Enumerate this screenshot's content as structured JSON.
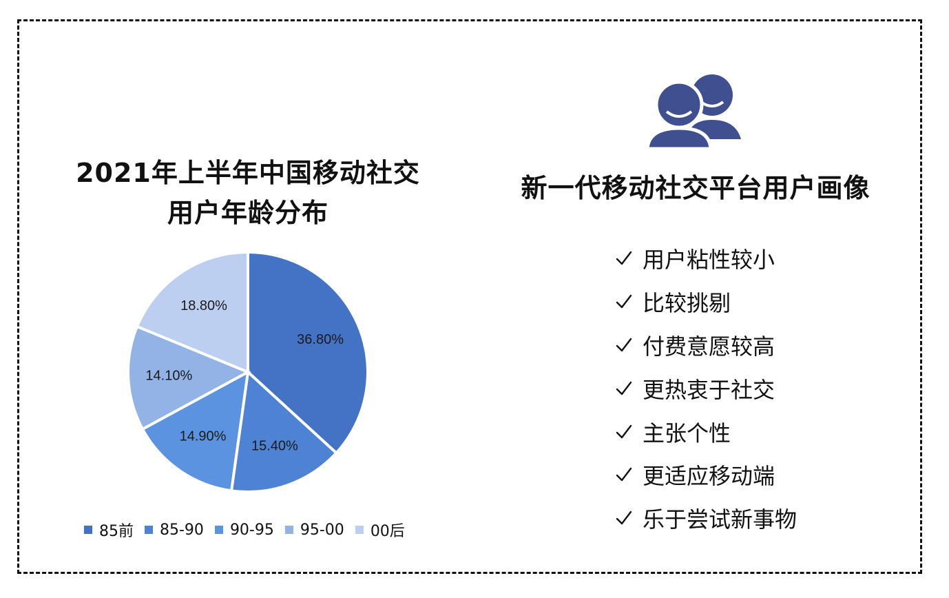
{
  "chart_data": {
    "type": "pie",
    "title_lines": [
      "2021年上半年中国移动社交",
      "用户年龄分布"
    ],
    "categories": [
      "85前",
      "85-90",
      "90-95",
      "95-00",
      "00后"
    ],
    "values": [
      36.8,
      15.4,
      14.9,
      14.1,
      18.8
    ],
    "value_labels": [
      "36.80%",
      "15.40%",
      "14.90%",
      "14.10%",
      "18.80%"
    ],
    "colors": [
      "#4472c4",
      "#4e82d4",
      "#5b93e0",
      "#93b3e6",
      "#bccff0"
    ],
    "legend_position": "bottom"
  },
  "persona": {
    "icon": "users-icon",
    "icon_color": "#3f4f8f",
    "title": "新一代移动社交平台用户画像",
    "traits": [
      "用户粘性较小",
      "比较挑剔",
      "付费意愿较高",
      "更热衷于社交",
      "主张个性",
      "更适应移动端",
      "乐于尝试新事物"
    ]
  }
}
